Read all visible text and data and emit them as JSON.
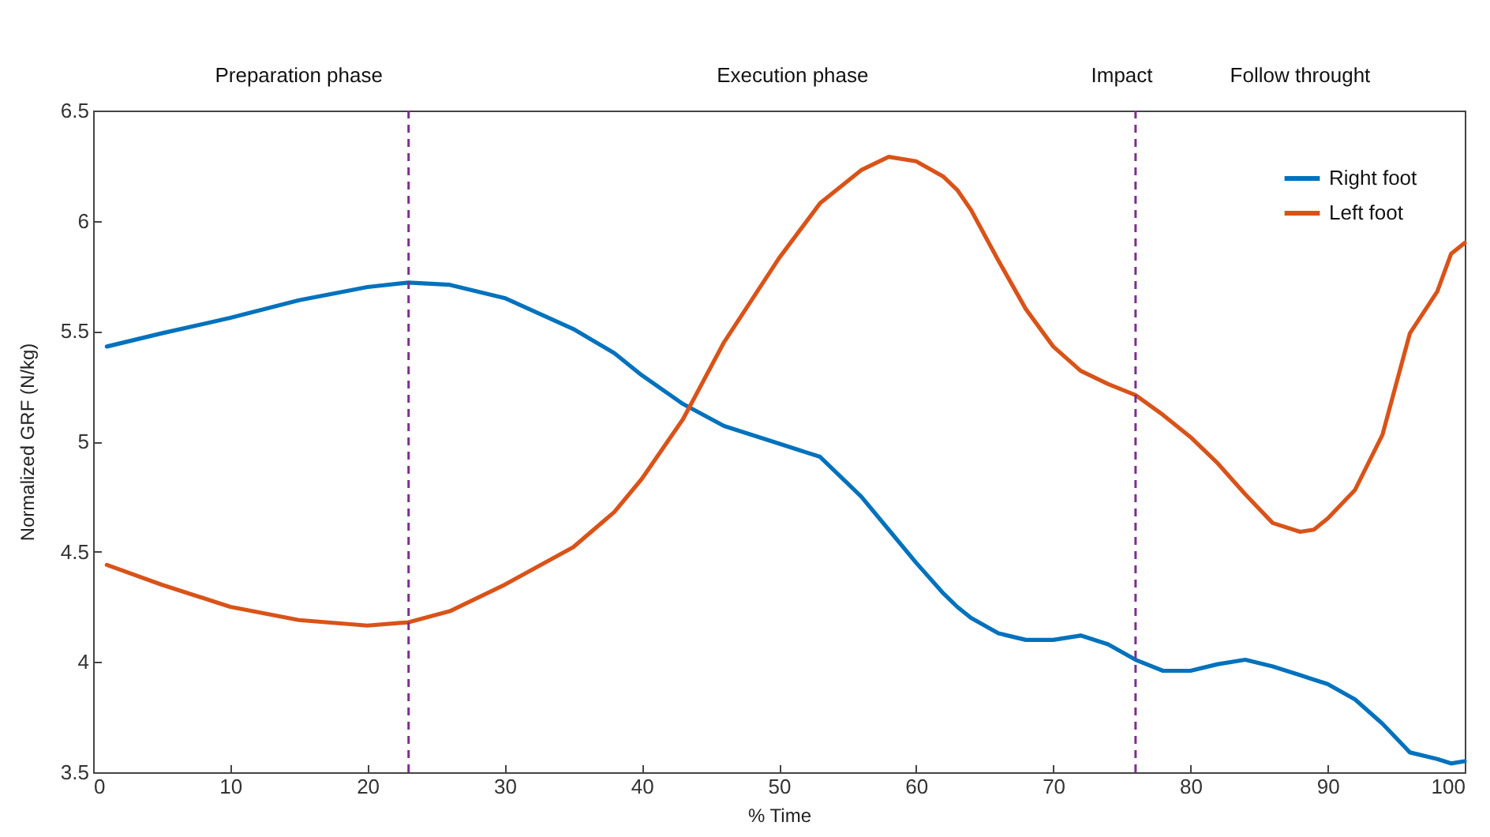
{
  "chart_data": {
    "type": "line",
    "xlabel": "% Time",
    "ylabel": "Normalized GRF (N/kg)",
    "xlim": [
      0,
      100
    ],
    "xticks": [
      0,
      10,
      20,
      30,
      40,
      50,
      60,
      70,
      80,
      90,
      100
    ],
    "ylim": [
      3.5,
      6.5
    ],
    "yticks": [
      3.5,
      4,
      4.5,
      5,
      5.5,
      6,
      6.5
    ],
    "grid": false,
    "legend": "top right",
    "marker": "none",
    "line_style": "solid",
    "x": [
      1,
      5,
      10,
      15,
      20,
      23,
      26,
      30,
      35,
      38,
      40,
      43,
      46,
      50,
      53,
      56,
      58,
      60,
      62,
      63,
      64,
      66,
      68,
      70,
      72,
      74,
      76,
      78,
      80,
      82,
      84,
      86,
      88,
      89,
      90,
      92,
      94,
      96,
      98,
      99,
      100
    ],
    "series": [
      {
        "name": "Right foot",
        "color": "#0072bd",
        "values": [
          5.43,
          5.49,
          5.56,
          5.64,
          5.7,
          5.72,
          5.71,
          5.65,
          5.51,
          5.4,
          5.3,
          5.17,
          5.07,
          4.99,
          4.93,
          4.75,
          4.6,
          4.45,
          4.31,
          4.25,
          4.2,
          4.13,
          4.1,
          4.1,
          4.12,
          4.08,
          4.01,
          3.96,
          3.96,
          3.99,
          4.01,
          3.98,
          3.94,
          3.92,
          3.9,
          3.83,
          3.72,
          3.59,
          3.56,
          3.54,
          3.55
        ]
      },
      {
        "name": "Left foot",
        "color": "#d95319",
        "values": [
          4.44,
          4.35,
          4.25,
          4.19,
          4.165,
          4.18,
          4.23,
          4.35,
          4.52,
          4.68,
          4.83,
          5.1,
          5.45,
          5.83,
          6.08,
          6.23,
          6.29,
          6.27,
          6.2,
          6.14,
          6.05,
          5.82,
          5.6,
          5.43,
          5.32,
          5.26,
          5.21,
          5.12,
          5.02,
          4.9,
          4.76,
          4.63,
          4.59,
          4.6,
          4.65,
          4.78,
          5.03,
          5.49,
          5.68,
          5.85,
          5.9
        ]
      }
    ],
    "ref_lines": [
      {
        "axis": "x",
        "value": 23,
        "color": "#7e2f8e",
        "line_style": "dashed"
      },
      {
        "axis": "x",
        "value": 76,
        "color": "#7e2f8e",
        "line_style": "dashed"
      }
    ],
    "annotations": [
      "Preparation phase",
      "Execution phase",
      "Impact",
      "Follow throught"
    ]
  }
}
